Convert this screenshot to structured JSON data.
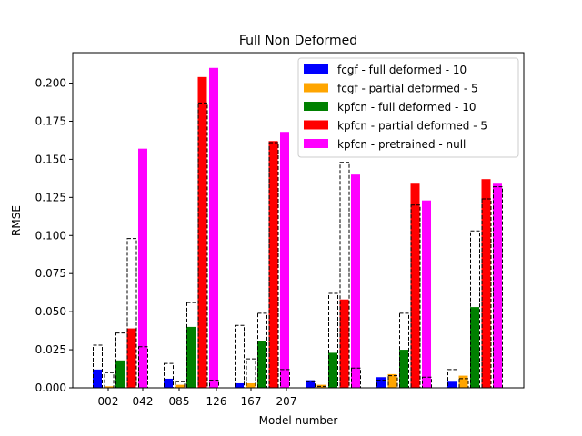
{
  "chart_data": {
    "type": "bar",
    "title": "Full Non Deformed",
    "xlabel": "Model number",
    "ylabel": "RMSE",
    "ylim": [
      0,
      0.22
    ],
    "yticks": [
      0.0,
      0.025,
      0.05,
      0.075,
      0.1,
      0.125,
      0.15,
      0.175,
      0.2
    ],
    "ytick_labels": [
      "0.000",
      "0.025",
      "0.050",
      "0.075",
      "0.100",
      "0.125",
      "0.150",
      "0.175",
      "0.200"
    ],
    "xtick_labels": [
      "002",
      "042",
      "085",
      "126",
      "167",
      "207"
    ],
    "legend_position": "top-right",
    "groups": 6,
    "series": [
      {
        "name": "fcgf - full deformed - 10",
        "color": "#0000ff",
        "values": [
          0.012,
          0.006,
          0.003,
          0.005,
          0.007,
          0.004
        ]
      },
      {
        "name": "fcgf - partial deformed - 5",
        "color": "#ffa500",
        "values": [
          0.001,
          0.002,
          0.003,
          0.002,
          0.009,
          0.008
        ]
      },
      {
        "name": "kpfcn - full deformed - 10",
        "color": "#008000",
        "values": [
          0.018,
          0.04,
          0.031,
          0.023,
          0.025,
          0.053
        ]
      },
      {
        "name": "kpfcn - partial deformed - 5",
        "color": "#ff0000",
        "values": [
          0.039,
          0.204,
          0.162,
          0.058,
          0.134,
          0.137
        ]
      },
      {
        "name": "kpfcn - pretrained - null",
        "color": "#ff00ff",
        "values": [
          0.157,
          0.21,
          0.168,
          0.14,
          0.123,
          0.134
        ]
      }
    ],
    "reference_outlines": [
      [
        0.028,
        0.016,
        0.041,
        0.004,
        0.005,
        0.012
      ],
      [
        0.01,
        0.004,
        0.019,
        0.001,
        0.008,
        0.006
      ],
      [
        0.036,
        0.056,
        0.049,
        0.062,
        0.049,
        0.103
      ],
      [
        0.098,
        0.187,
        0.161,
        0.148,
        0.12,
        0.124
      ],
      [
        0.027,
        0.005,
        0.012,
        0.013,
        0.007,
        0.132
      ]
    ]
  }
}
